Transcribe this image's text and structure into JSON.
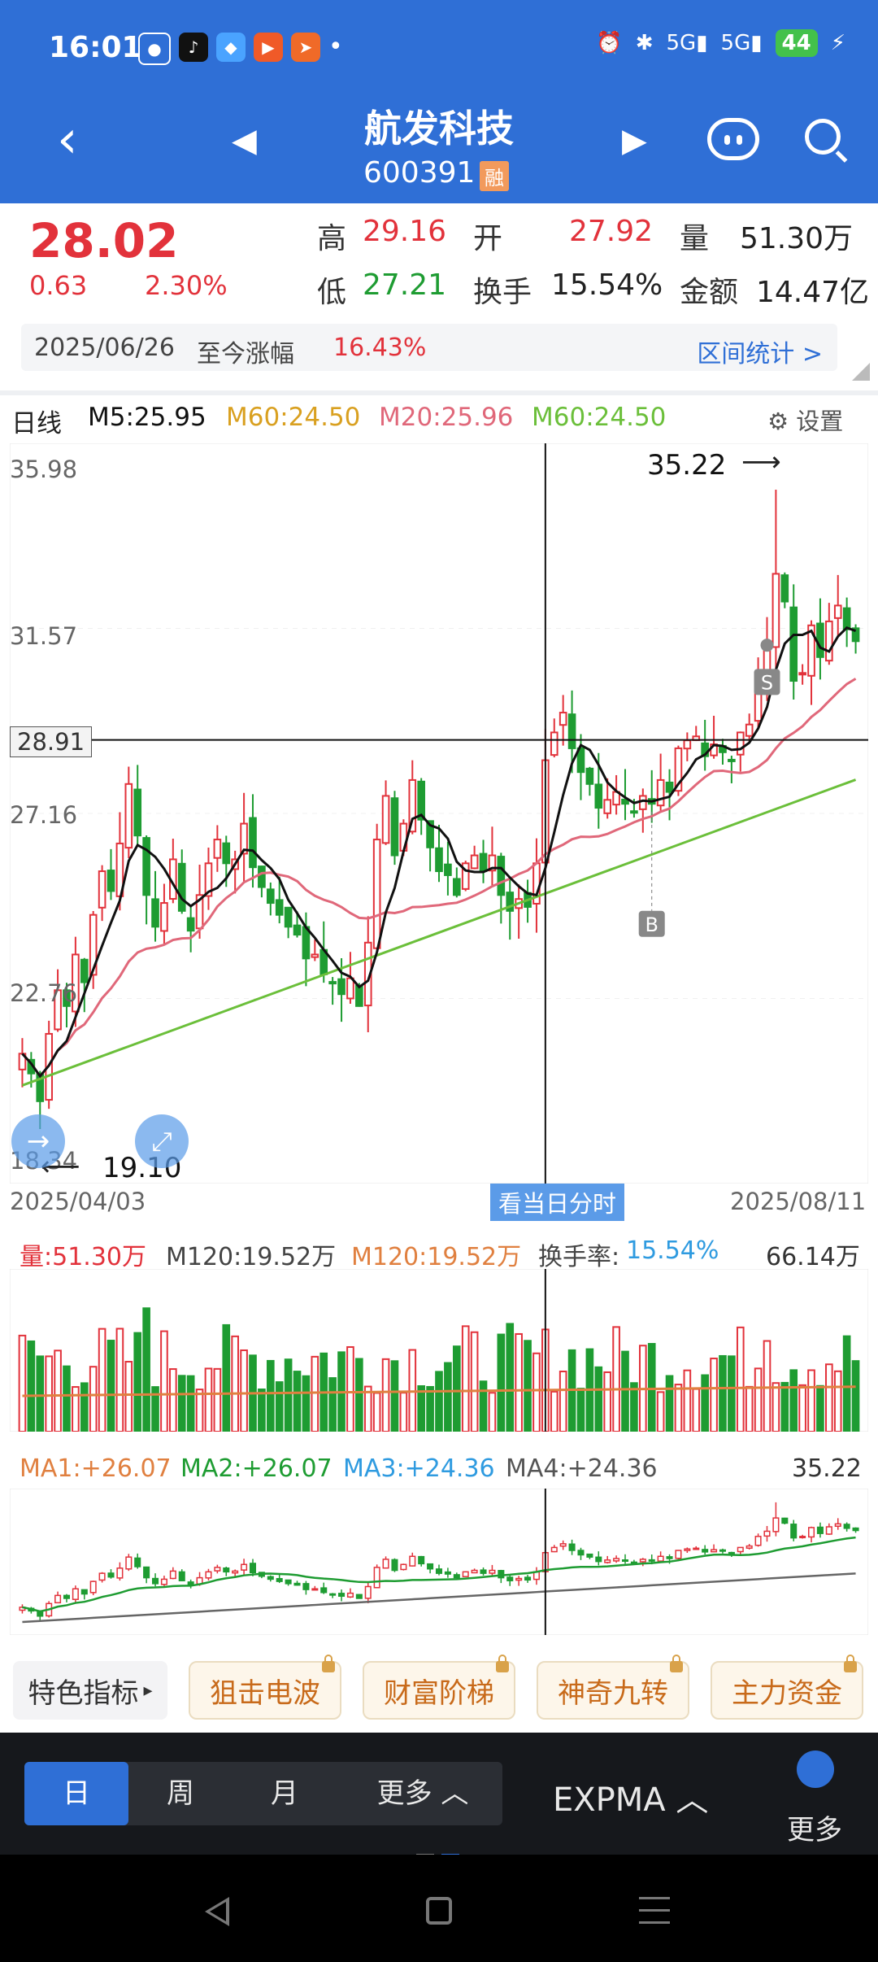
{
  "status_bar": {
    "time": "16:01",
    "battery": "44",
    "signal1": "5G",
    "signal2": "5G"
  },
  "header": {
    "title": "航发科技",
    "code": "600391",
    "badge": "融"
  },
  "quote": {
    "price": "28.02",
    "change": "0.63",
    "change_pct": "2.30%",
    "high_label": "高",
    "high": "29.16",
    "open_label": "开",
    "open": "27.92",
    "volume_label": "量",
    "volume": "51.30万",
    "low_label": "低",
    "low": "27.21",
    "turnover_label": "换手",
    "turnover": "15.54%",
    "amount_label": "金额",
    "amount": "14.47亿",
    "range_date": "2025/06/26",
    "range_label": "至今涨幅",
    "range_value": "16.43%",
    "range_stats": "区间统计 >"
  },
  "chart_header": {
    "period_label": "日线",
    "m5": "M5:25.95",
    "m60a": "M60:24.50",
    "m20": "M20:25.96",
    "m60b": "M60:24.50",
    "settings": "设置"
  },
  "chart_data": {
    "type": "candlestick",
    "price_axis": [
      "35.98",
      "31.57",
      "27.16",
      "22.76",
      "18.34"
    ],
    "crosshair_value": "28.91",
    "high_marker": "35.22",
    "low_marker": "19.10",
    "start_date": "2025/04/03",
    "end_date": "2025/08/11",
    "intraday_button": "看当日分时",
    "buy_marker": "B",
    "sell_marker": "S",
    "ylim": [
      18.34,
      35.98
    ],
    "closes": [
      21.0,
      20.5,
      19.8,
      21.5,
      22.6,
      22.2,
      23.5,
      22.8,
      24.5,
      25.6,
      25.1,
      26.3,
      27.8,
      26.5,
      25.0,
      24.2,
      24.8,
      25.9,
      24.6,
      24.1,
      25.0,
      25.8,
      26.4,
      25.8,
      25.9,
      26.8,
      25.7,
      25.2,
      24.8,
      24.5,
      24.2,
      24.0,
      23.4,
      23.5,
      23.0,
      22.8,
      22.5,
      22.9,
      22.2,
      23.8,
      26.4,
      27.5,
      26.0,
      26.8,
      27.9,
      26.9,
      26.2,
      25.6,
      25.5,
      25.0,
      25.8,
      26.0,
      25.6,
      26.0,
      25.0,
      24.6,
      24.9,
      24.7,
      25.8,
      28.4,
      29.1,
      29.6,
      28.7,
      28.1,
      27.8,
      27.2,
      27.4,
      27.6,
      27.3,
      27.1,
      27.5,
      27.3,
      27.9,
      27.6,
      28.7,
      28.9,
      29.0,
      28.5,
      28.8,
      28.6,
      28.4,
      29.1,
      29.3,
      30.6,
      31.3,
      33.1,
      32.4,
      30.4,
      30.6,
      31.8,
      31.0,
      31.9,
      32.3,
      31.7,
      31.4
    ],
    "series": [
      {
        "name": "M5",
        "color": "#111111"
      },
      {
        "name": "M20",
        "color": "#e0687a"
      },
      {
        "name": "M60",
        "color": "#6bbf3a"
      }
    ]
  },
  "volume_panel": {
    "vol": "量:51.30万",
    "m120a": "M120:19.52万",
    "m120b": "M120:19.52万",
    "turnover_label": "换手率:",
    "turnover": "15.54%",
    "max": "66.14万"
  },
  "ma_panel": {
    "ma1": "MA1:+26.07",
    "ma2": "MA2:+26.07",
    "ma3": "MA3:+24.36",
    "ma4": "MA4:+24.36",
    "max": "35.22"
  },
  "indicators": {
    "first": "特色指标",
    "items": [
      "狙击电波",
      "财富阶梯",
      "神奇九转",
      "主力资金"
    ]
  },
  "periods": {
    "items": [
      "日",
      "周",
      "月",
      "更多 ︿"
    ],
    "expma": "EXPMA ︿",
    "more": "更多"
  },
  "colors": {
    "up": "#e2323b",
    "down": "#1e9c32",
    "header": "#2f6fd6"
  }
}
